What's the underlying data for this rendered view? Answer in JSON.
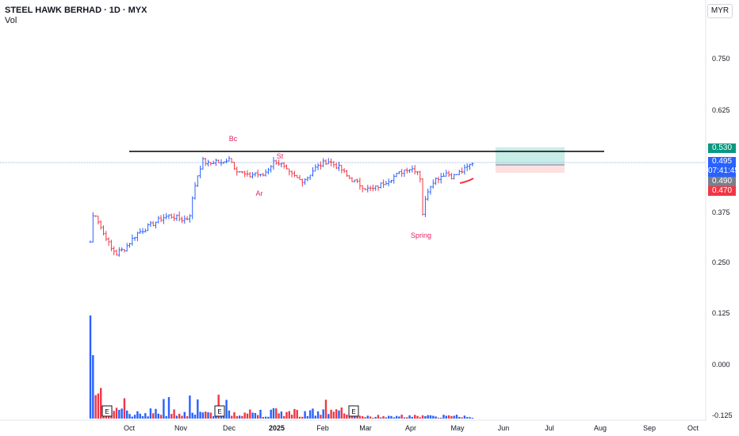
{
  "header": {
    "title": "STEEL HAWK BERHAD · 1D · MYX",
    "subtitle": "Vol",
    "currency": "MYR"
  },
  "price_labels": {
    "target": "0.530",
    "current": "0.495",
    "countdown": "07:41:45",
    "prev": "0.490",
    "stop": "0.470"
  },
  "colors": {
    "up": "#2962ff",
    "down": "#f23645",
    "annotation": "#e91e63",
    "target_zone": "#c8ece8",
    "stop_zone": "#fde0e0",
    "resistance": "#000000"
  },
  "chart_data": {
    "type": "candlestick",
    "y_axis": {
      "ticks": [
        "0.750",
        "0.625",
        "0.500",
        "0.375",
        "0.250",
        "0.125",
        "0.000",
        "-0.125"
      ],
      "ylim": [
        -0.125,
        0.85
      ]
    },
    "x_axis": {
      "ticks": [
        "Oct",
        "Nov",
        "Dec",
        "2025",
        "Feb",
        "Mar",
        "Apr",
        "May",
        "Jun",
        "Jul",
        "Aug",
        "Sep",
        "Oct"
      ]
    },
    "annotations": [
      "Bc",
      "St",
      "Ar",
      "Spring"
    ],
    "earnings_markers": [
      "E",
      "E",
      "E"
    ],
    "resistance_level": 0.543,
    "position": {
      "target": 0.53,
      "entry": 0.49,
      "stop": 0.47
    },
    "price_path": [
      [
        0,
        0.3
      ],
      [
        1,
        0.38
      ],
      [
        2,
        0.36
      ],
      [
        3,
        0.34
      ],
      [
        4,
        0.32
      ],
      [
        5,
        0.31
      ],
      [
        6,
        0.285
      ],
      [
        7,
        0.28
      ],
      [
        8,
        0.27
      ],
      [
        9,
        0.28
      ],
      [
        10,
        0.28
      ],
      [
        12,
        0.3
      ],
      [
        14,
        0.32
      ],
      [
        16,
        0.33
      ],
      [
        18,
        0.34
      ],
      [
        20,
        0.35
      ],
      [
        22,
        0.36
      ],
      [
        24,
        0.365
      ],
      [
        26,
        0.36
      ],
      [
        28,
        0.355
      ],
      [
        30,
        0.36
      ],
      [
        32,
        0.45
      ],
      [
        34,
        0.5
      ],
      [
        36,
        0.49
      ],
      [
        38,
        0.5
      ],
      [
        40,
        0.49
      ],
      [
        42,
        0.51
      ],
      [
        44,
        0.48
      ],
      [
        46,
        0.47
      ],
      [
        48,
        0.46
      ],
      [
        50,
        0.47
      ],
      [
        52,
        0.46
      ],
      [
        54,
        0.48
      ],
      [
        56,
        0.5
      ],
      [
        58,
        0.49
      ],
      [
        60,
        0.47
      ],
      [
        62,
        0.46
      ],
      [
        64,
        0.45
      ],
      [
        66,
        0.46
      ],
      [
        68,
        0.48
      ],
      [
        70,
        0.49
      ],
      [
        72,
        0.5
      ],
      [
        74,
        0.49
      ],
      [
        76,
        0.48
      ],
      [
        78,
        0.46
      ],
      [
        80,
        0.45
      ],
      [
        82,
        0.44
      ],
      [
        84,
        0.43
      ],
      [
        86,
        0.43
      ],
      [
        88,
        0.44
      ],
      [
        90,
        0.45
      ],
      [
        92,
        0.46
      ],
      [
        94,
        0.47
      ],
      [
        96,
        0.48
      ],
      [
        98,
        0.48
      ],
      [
        100,
        0.47
      ],
      [
        101,
        0.36
      ],
      [
        102,
        0.42
      ],
      [
        104,
        0.45
      ],
      [
        106,
        0.46
      ],
      [
        108,
        0.47
      ],
      [
        110,
        0.46
      ],
      [
        112,
        0.47
      ],
      [
        114,
        0.48
      ],
      [
        116,
        0.495
      ]
    ],
    "volume_profile": "spike near Sep with decaying activity thereafter"
  }
}
